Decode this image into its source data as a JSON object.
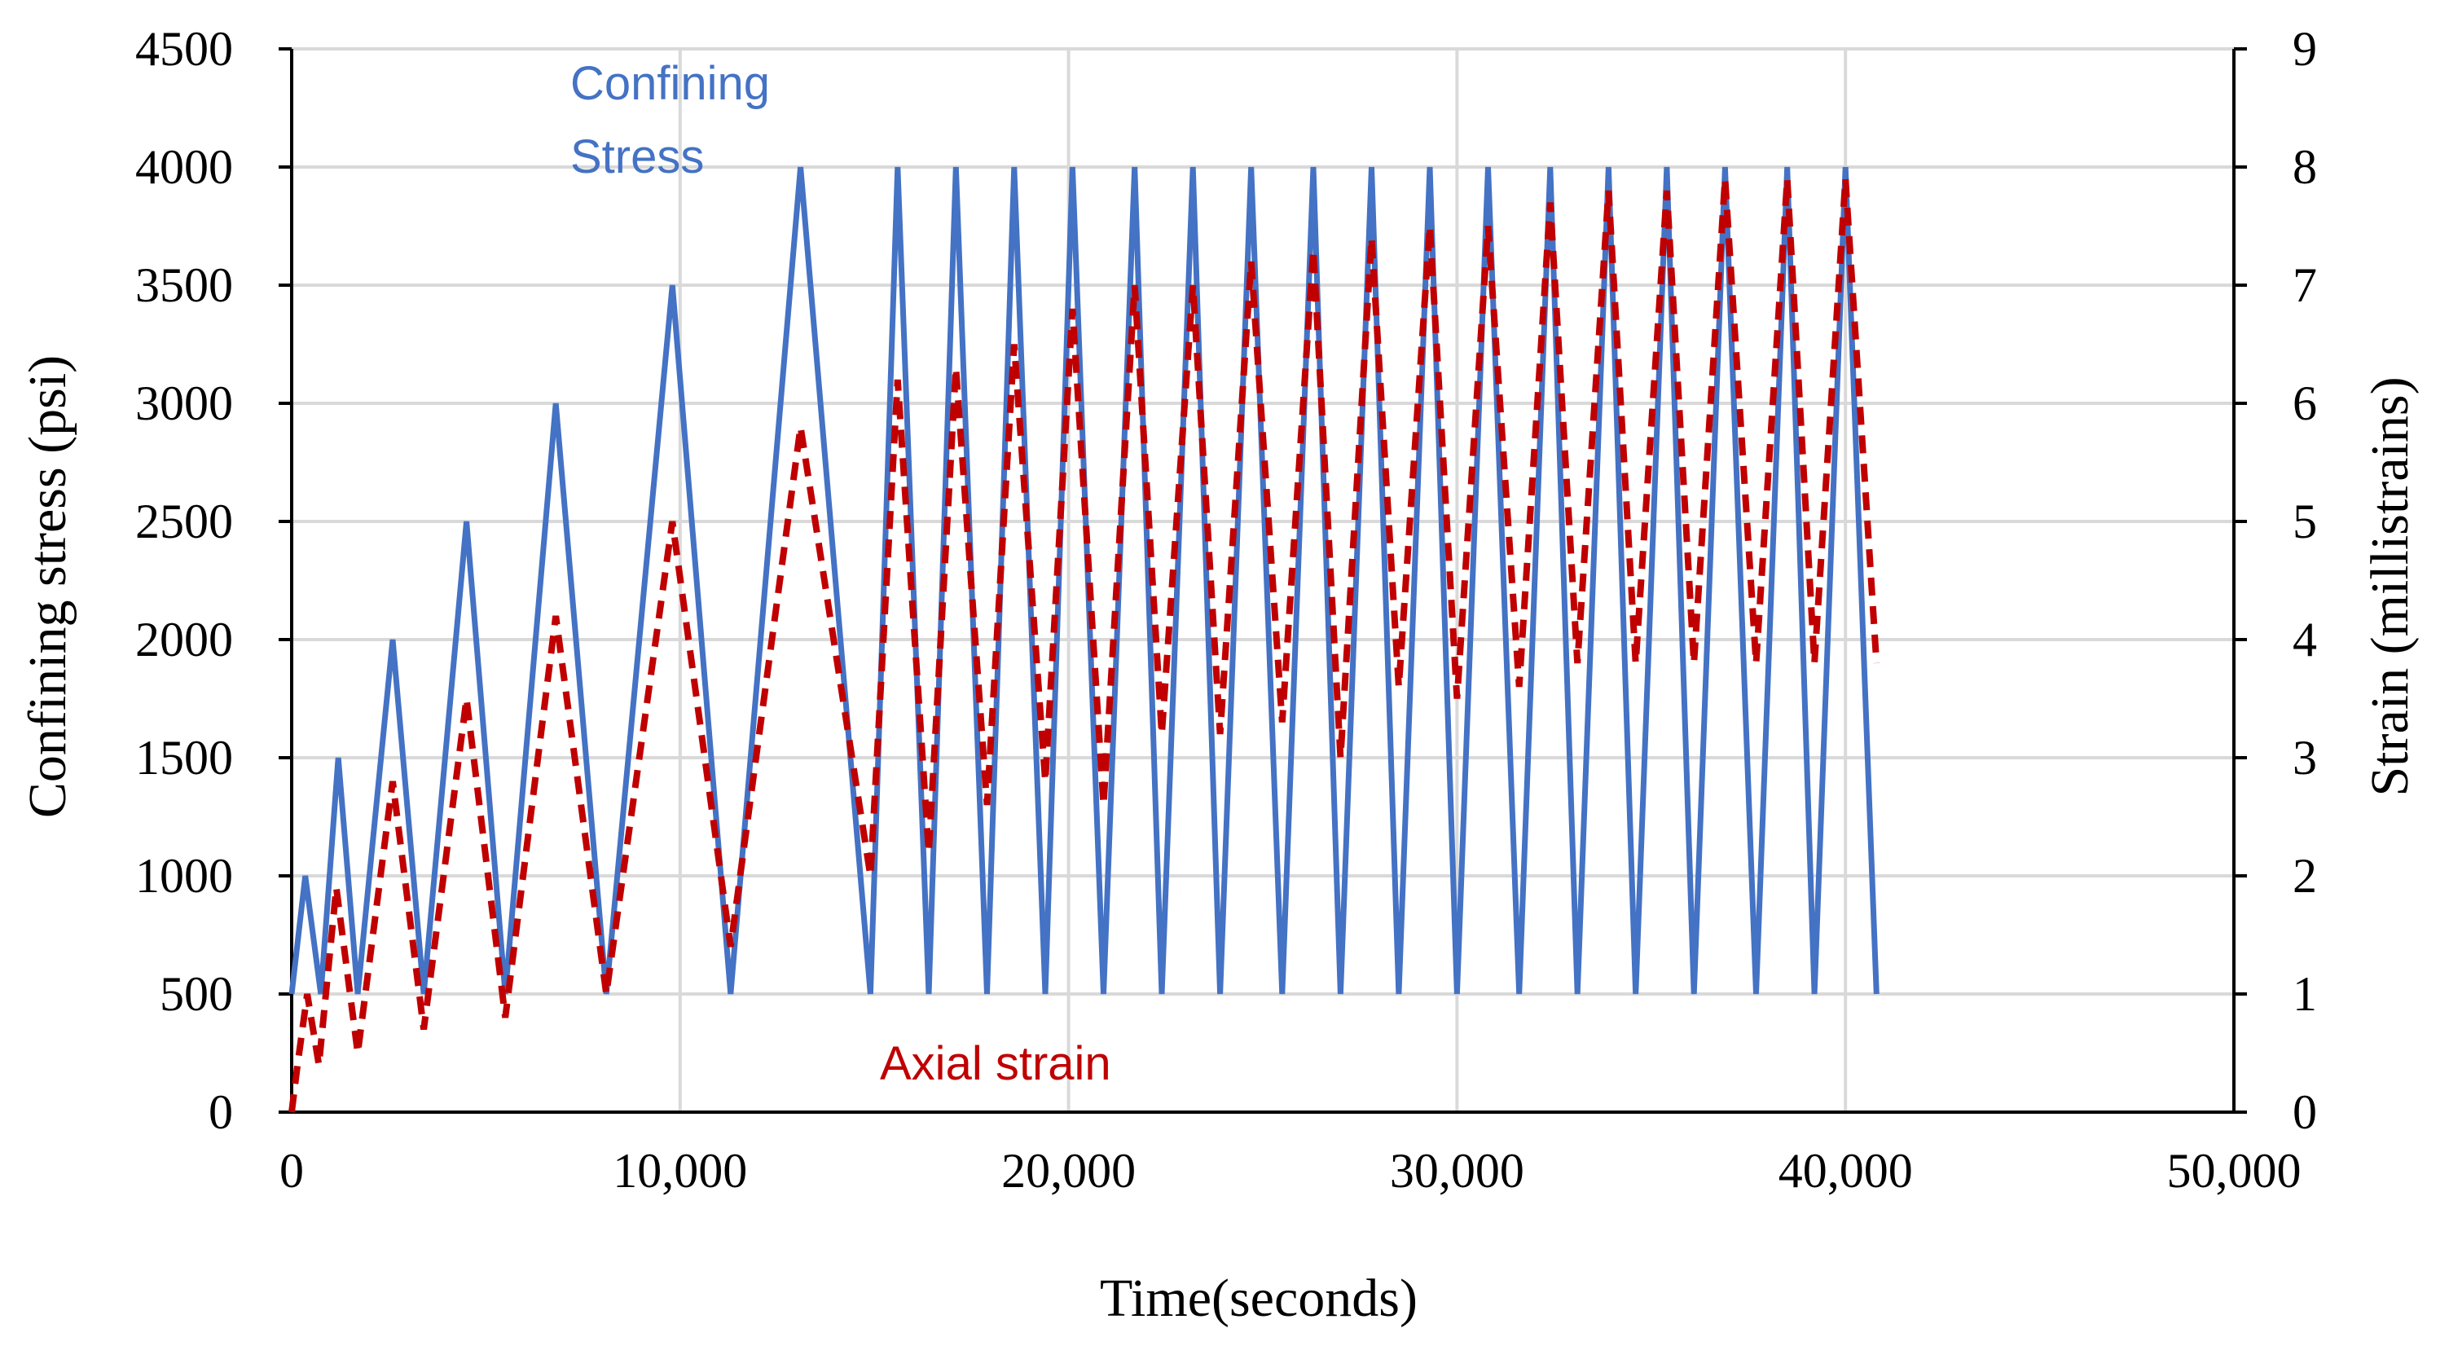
{
  "chart_data": {
    "type": "line",
    "title": "",
    "xlabel": "Time(seconds)",
    "ylabel": "Confining stress (psi)",
    "y2label": "Strain (millistrains)",
    "xlim": [
      0,
      50000
    ],
    "ylim": [
      0,
      4500
    ],
    "y2lim": [
      0,
      9
    ],
    "x_ticks": [
      0,
      10000,
      20000,
      30000,
      40000,
      50000
    ],
    "x_tick_labels": [
      "0",
      "10,000",
      "20,000",
      "30,000",
      "40,000",
      "50,000"
    ],
    "y_ticks": [
      0,
      500,
      1000,
      1500,
      2000,
      2500,
      3000,
      3500,
      4000,
      4500
    ],
    "y_tick_labels": [
      "0",
      "500",
      "1000",
      "1500",
      "2000",
      "2500",
      "3000",
      "3500",
      "4000",
      "4500"
    ],
    "y2_ticks": [
      0,
      1,
      2,
      3,
      4,
      5,
      6,
      7,
      8,
      9
    ],
    "y2_tick_labels": [
      "0",
      "1",
      "2",
      "3",
      "4",
      "5",
      "6",
      "7",
      "8",
      "9"
    ],
    "grid": true,
    "colors": {
      "stress": "#4472C4",
      "strain": "#C00000",
      "grid": "#D9D9D9",
      "axis": "#000000"
    },
    "annotations": {
      "stress_line1": "Confining",
      "stress_line2": "Stress",
      "strain": "Axial strain"
    },
    "series": [
      {
        "name": "Confining Stress",
        "axis": "left",
        "style": "solid",
        "x": [
          0,
          350,
          750,
          1200,
          1700,
          2600,
          3400,
          4500,
          5500,
          6800,
          8100,
          9800,
          11300,
          13100,
          14900,
          15600,
          16400,
          17100,
          17900,
          18600,
          19400,
          20100,
          20900,
          21700,
          22400,
          23200,
          23900,
          24700,
          25500,
          26300,
          27000,
          27800,
          28500,
          29300,
          30000,
          30800,
          31600,
          32400,
          33100,
          33900,
          34600,
          35400,
          36100,
          36900,
          37700,
          38500,
          39200,
          40000,
          40800
        ],
        "y": [
          500,
          1000,
          500,
          1500,
          500,
          2000,
          500,
          2500,
          500,
          3000,
          500,
          3500,
          500,
          4000,
          500,
          4000,
          500,
          4000,
          500,
          4000,
          500,
          4000,
          500,
          4000,
          500,
          4000,
          500,
          4000,
          500,
          4000,
          500,
          4000,
          500,
          4000,
          500,
          4000,
          500,
          4000,
          500,
          4000,
          500,
          4000,
          500,
          4000,
          500,
          4000,
          500,
          4000,
          500
        ]
      },
      {
        "name": "Axial strain",
        "axis": "right",
        "style": "dashed",
        "x": [
          0,
          150,
          400,
          700,
          1150,
          1700,
          2600,
          3400,
          4500,
          5500,
          6800,
          8100,
          9800,
          11300,
          13100,
          14900,
          15600,
          16400,
          17100,
          17900,
          18600,
          19400,
          20100,
          20900,
          21700,
          22400,
          23200,
          23900,
          24700,
          25500,
          26300,
          27000,
          27800,
          28500,
          29300,
          30000,
          30800,
          31600,
          32400,
          33100,
          33900,
          34600,
          35400,
          36100,
          36900,
          37700,
          38500,
          39200,
          40000,
          40800
        ],
        "y": [
          0.0,
          0.4,
          1.0,
          0.4,
          1.9,
          0.5,
          2.8,
          0.7,
          3.5,
          0.8,
          4.2,
          1.0,
          5.0,
          1.4,
          5.8,
          2.0,
          6.2,
          2.2,
          6.3,
          2.6,
          6.5,
          2.8,
          6.8,
          2.6,
          7.0,
          3.2,
          7.0,
          3.2,
          7.2,
          3.3,
          7.3,
          3.0,
          7.4,
          3.6,
          7.5,
          3.5,
          7.5,
          3.6,
          7.7,
          3.8,
          7.8,
          3.8,
          7.8,
          3.8,
          7.9,
          3.8,
          7.9,
          3.8,
          7.9,
          3.8
        ]
      }
    ]
  }
}
